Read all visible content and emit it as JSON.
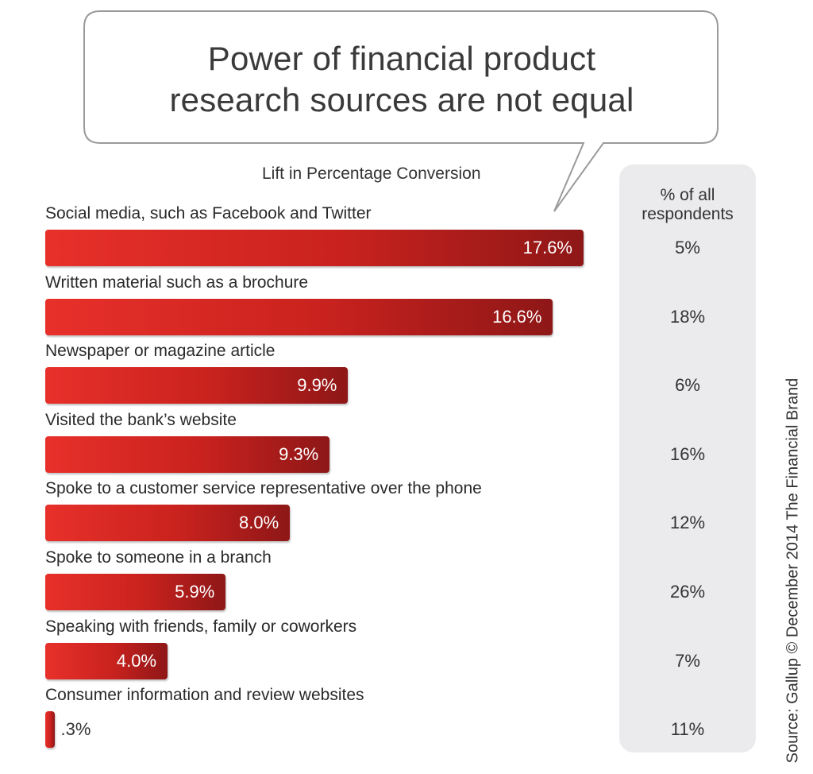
{
  "chart_data": {
    "type": "bar",
    "orientation": "horizontal",
    "title_lines": [
      "Power of financial product",
      "research sources are not equal"
    ],
    "subtitle": "Lift in Percentage Conversion",
    "side_header_lines": [
      "% of all",
      "respondents"
    ],
    "categories": [
      "Social media, such as Facebook and Twitter",
      "Written material such as a brochure",
      "Newspaper or magazine article",
      "Visited the bank’s website",
      "Spoke to a customer service representative over the phone",
      "Spoke to someone in a branch",
      "Speaking with friends, family or coworkers",
      "Consumer information and review websites"
    ],
    "values": [
      17.6,
      16.6,
      9.9,
      9.3,
      8.0,
      5.9,
      4.0,
      0.3
    ],
    "value_labels": [
      "17.6%",
      "16.6%",
      "9.9%",
      "9.3%",
      "8.0%",
      "5.9%",
      "4.0%",
      ".3%"
    ],
    "respondent_labels": [
      "5%",
      "18%",
      "6%",
      "16%",
      "12%",
      "26%",
      "7%",
      "11%"
    ],
    "xlim": [
      0,
      17.6
    ],
    "grid": false,
    "source": "Source: Gallup © December 2014 The Financial Brand",
    "colors": {
      "bar_start": "#e8302a",
      "bar_end": "#8e1717",
      "panel": "#ebebee"
    }
  }
}
